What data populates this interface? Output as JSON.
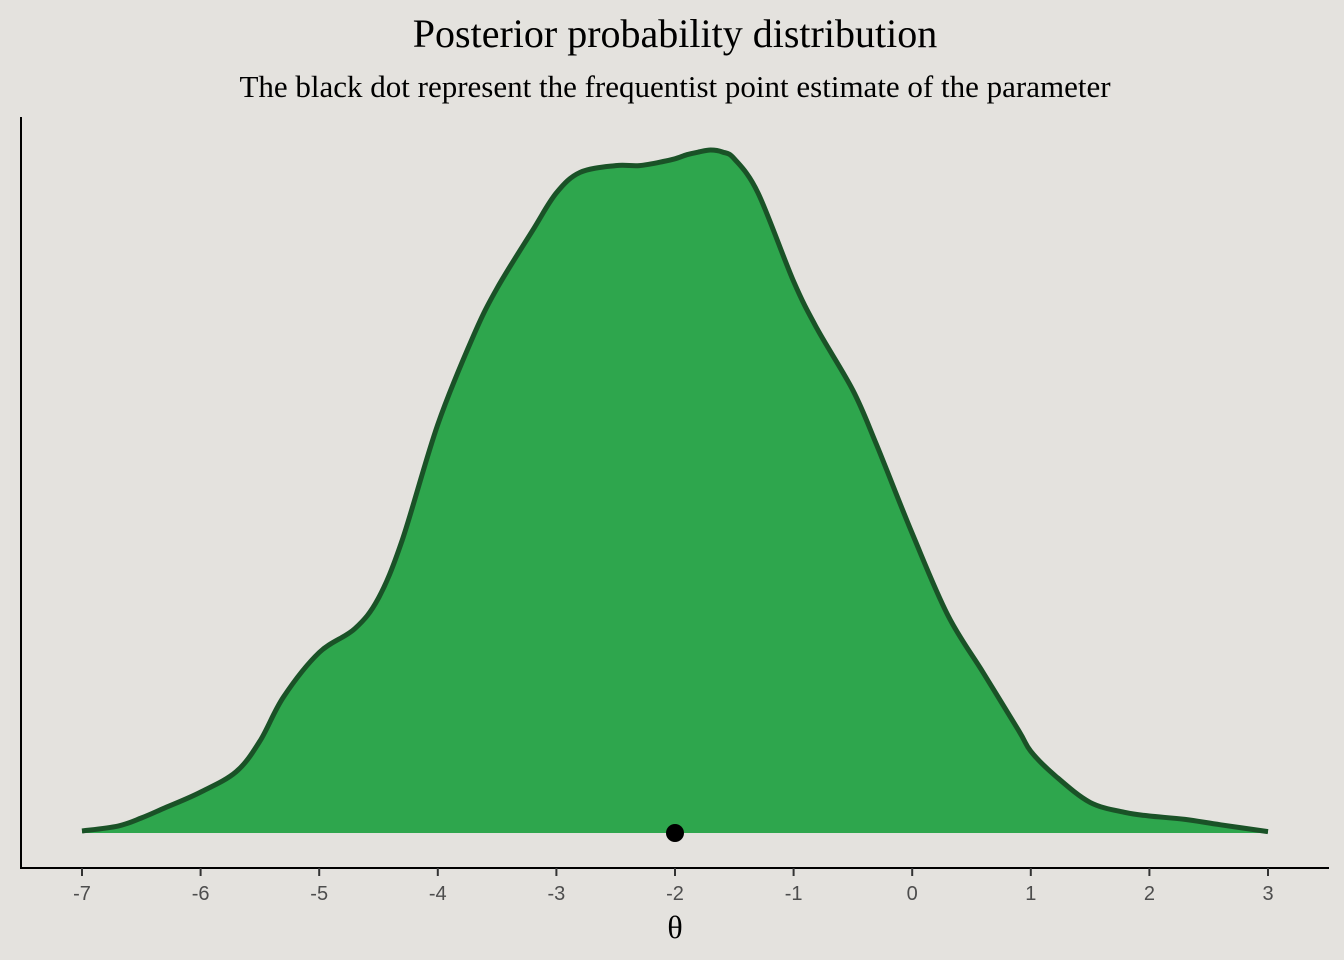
{
  "chart_data": {
    "type": "area",
    "title": "Posterior probability distribution",
    "subtitle": "The black dot represent the frequentist point estimate of the parameter",
    "xlabel": "θ",
    "ylabel": "",
    "xlim": [
      -7.5,
      3.5
    ],
    "ylim": [
      0,
      1
    ],
    "x_ticks": [
      -7,
      -6,
      -5,
      -4,
      -3,
      -2,
      -1,
      0,
      1,
      2,
      3
    ],
    "x_tick_labels": [
      "-7",
      "-6",
      "-5",
      "-4",
      "-3",
      "-2",
      "-1",
      "0",
      "1",
      "2",
      "3"
    ],
    "grid": false,
    "legend": "none",
    "fill_color": "#2ea64d",
    "line_color": "#1a5227",
    "background_color": "#e4e2de",
    "density": {
      "x": [
        -7.0,
        -6.7,
        -6.5,
        -6.3,
        -6.0,
        -5.7,
        -5.5,
        -5.3,
        -5.0,
        -4.7,
        -4.5,
        -4.3,
        -4.0,
        -3.7,
        -3.5,
        -3.2,
        -3.0,
        -2.8,
        -2.5,
        -2.3,
        -2.1,
        -2.0,
        -1.9,
        -1.8,
        -1.7,
        -1.6,
        -1.5,
        -1.3,
        -1.0,
        -0.8,
        -0.5,
        -0.3,
        0.0,
        0.3,
        0.6,
        0.9,
        1.0,
        1.2,
        1.5,
        1.8,
        2.0,
        2.3,
        2.6,
        3.0
      ],
      "y": [
        0.003,
        0.01,
        0.022,
        0.037,
        0.06,
        0.09,
        0.135,
        0.2,
        0.265,
        0.3,
        0.345,
        0.43,
        0.6,
        0.73,
        0.8,
        0.885,
        0.94,
        0.97,
        0.98,
        0.98,
        0.986,
        0.99,
        0.996,
        1.0,
        1.003,
        1.0,
        0.99,
        0.94,
        0.81,
        0.74,
        0.65,
        0.57,
        0.44,
        0.32,
        0.235,
        0.15,
        0.12,
        0.085,
        0.045,
        0.03,
        0.025,
        0.02,
        0.012,
        0.002
      ]
    },
    "point_estimate": {
      "x": -2.0,
      "y": 0
    }
  }
}
